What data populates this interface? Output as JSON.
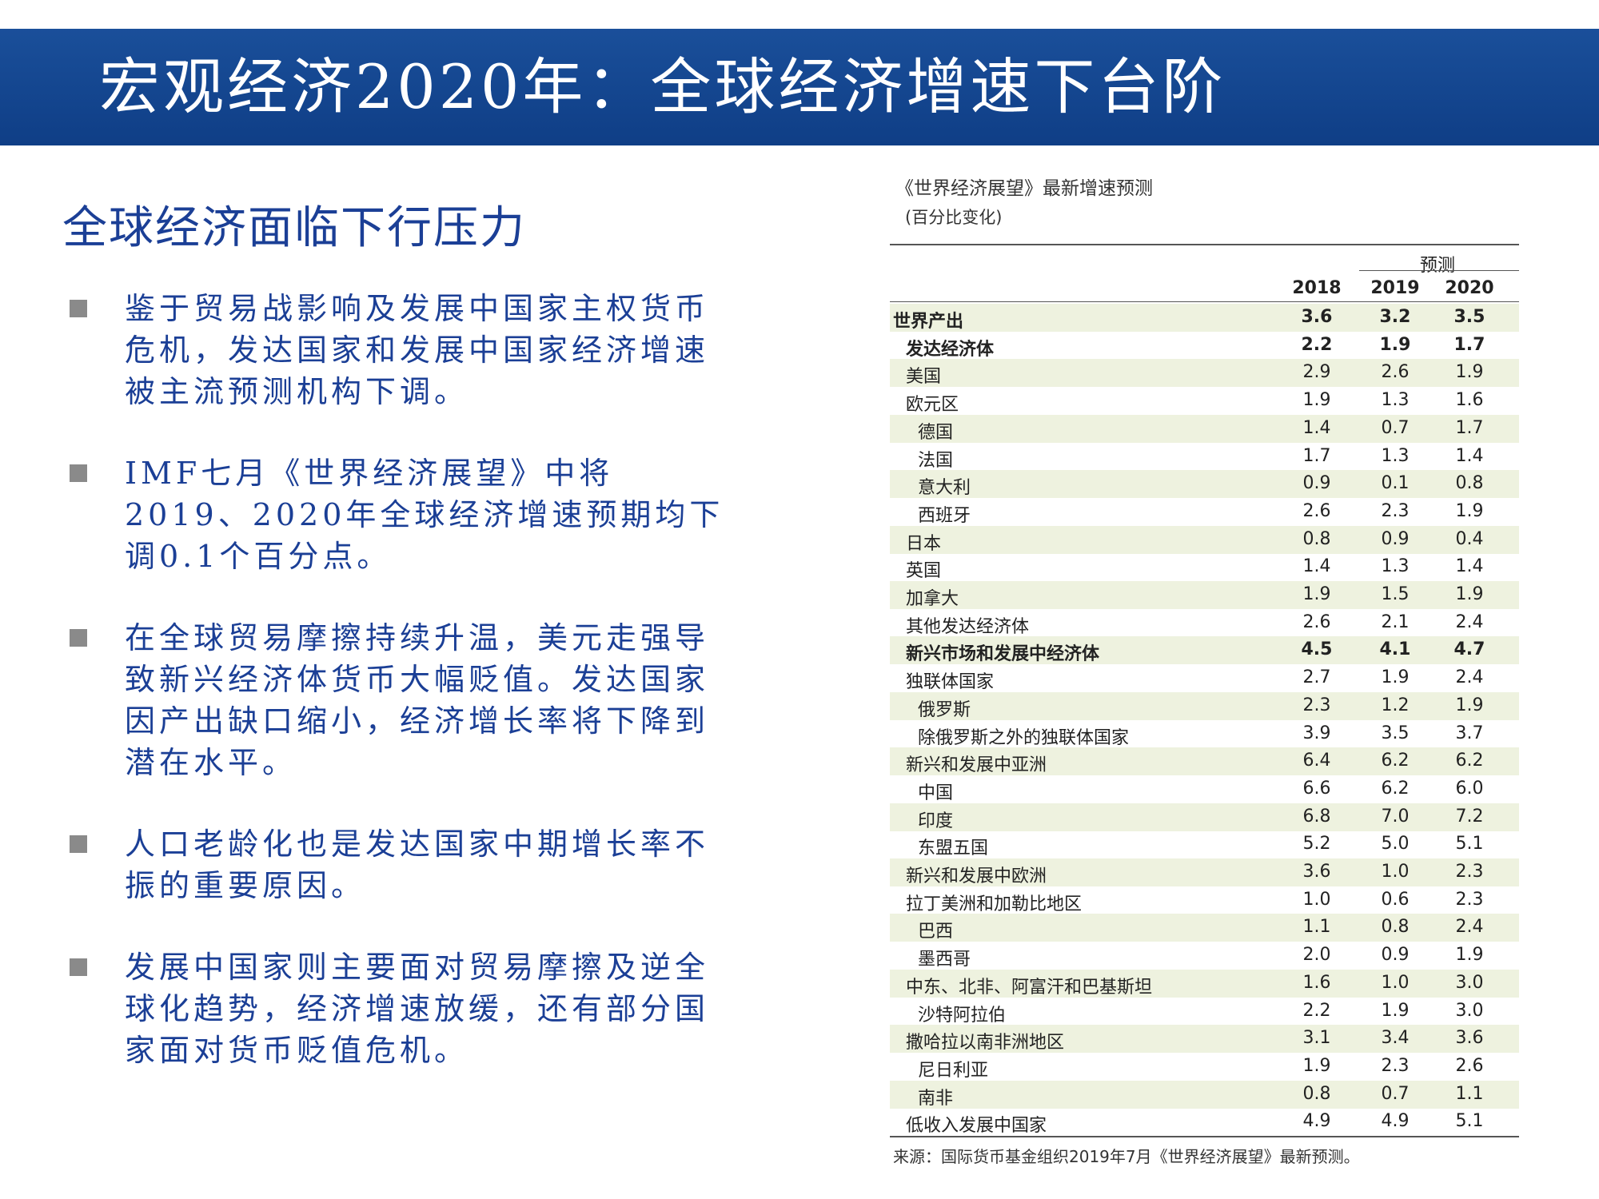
{
  "header": {
    "title": "宏观经济2020年：全球经济增速下台阶"
  },
  "left": {
    "heading": "全球经济面临下行压力",
    "bullets": [
      "鉴于贸易战影响及发展中国家主权货币危机，发达国家和发展中国家经济增速被主流预测机构下调。",
      "IMF七月《世界经济展望》中将2019、2020年全球经济增速预期均下调0.1个百分点。",
      "在全球贸易摩擦持续升温，美元走强导致新兴经济体货币大幅贬值。发达国家因产出缺口缩小，经济增长率将下降到潜在水平。",
      "人口老龄化也是发达国家中期增长率不振的重要原因。",
      "发展中国家则主要面对贸易摩擦及逆全球化趋势，经济增速放缓，还有部分国家面对货币贬值危机。"
    ]
  },
  "table": {
    "title": "《世界经济展望》最新增速预测",
    "subtitle": "(百分比变化)",
    "forecast_label": "预测",
    "columns": [
      "2018",
      "2019",
      "2020"
    ],
    "rows": [
      {
        "label": "世界产出",
        "values": [
          "3.6",
          "3.2",
          "3.5"
        ],
        "level": 0,
        "bold": true
      },
      {
        "label": "发达经济体",
        "values": [
          "2.2",
          "1.9",
          "1.7"
        ],
        "level": 1,
        "bold": true
      },
      {
        "label": "美国",
        "values": [
          "2.9",
          "2.6",
          "1.9"
        ],
        "level": 1
      },
      {
        "label": "欧元区",
        "values": [
          "1.9",
          "1.3",
          "1.6"
        ],
        "level": 1
      },
      {
        "label": "德国",
        "values": [
          "1.4",
          "0.7",
          "1.7"
        ],
        "level": 2
      },
      {
        "label": "法国",
        "values": [
          "1.7",
          "1.3",
          "1.4"
        ],
        "level": 2
      },
      {
        "label": "意大利",
        "values": [
          "0.9",
          "0.1",
          "0.8"
        ],
        "level": 2
      },
      {
        "label": "西班牙",
        "values": [
          "2.6",
          "2.3",
          "1.9"
        ],
        "level": 2
      },
      {
        "label": "日本",
        "values": [
          "0.8",
          "0.9",
          "0.4"
        ],
        "level": 1
      },
      {
        "label": "英国",
        "values": [
          "1.4",
          "1.3",
          "1.4"
        ],
        "level": 1
      },
      {
        "label": "加拿大",
        "values": [
          "1.9",
          "1.5",
          "1.9"
        ],
        "level": 1
      },
      {
        "label": "其他发达经济体",
        "values": [
          "2.6",
          "2.1",
          "2.4"
        ],
        "level": 1
      },
      {
        "label": "新兴市场和发展中经济体",
        "values": [
          "4.5",
          "4.1",
          "4.7"
        ],
        "level": 1,
        "bold": true
      },
      {
        "label": "独联体国家",
        "values": [
          "2.7",
          "1.9",
          "2.4"
        ],
        "level": 1
      },
      {
        "label": "俄罗斯",
        "values": [
          "2.3",
          "1.2",
          "1.9"
        ],
        "level": 2
      },
      {
        "label": "除俄罗斯之外的独联体国家",
        "values": [
          "3.9",
          "3.5",
          "3.7"
        ],
        "level": 2
      },
      {
        "label": "新兴和发展中亚洲",
        "values": [
          "6.4",
          "6.2",
          "6.2"
        ],
        "level": 1
      },
      {
        "label": "中国",
        "values": [
          "6.6",
          "6.2",
          "6.0"
        ],
        "level": 2
      },
      {
        "label": "印度",
        "values": [
          "6.8",
          "7.0",
          "7.2"
        ],
        "level": 2
      },
      {
        "label": "东盟五国",
        "values": [
          "5.2",
          "5.0",
          "5.1"
        ],
        "level": 2
      },
      {
        "label": "新兴和发展中欧洲",
        "values": [
          "3.6",
          "1.0",
          "2.3"
        ],
        "level": 1
      },
      {
        "label": "拉丁美洲和加勒比地区",
        "values": [
          "1.0",
          "0.6",
          "2.3"
        ],
        "level": 1
      },
      {
        "label": "巴西",
        "values": [
          "1.1",
          "0.8",
          "2.4"
        ],
        "level": 2
      },
      {
        "label": "墨西哥",
        "values": [
          "2.0",
          "0.9",
          "1.9"
        ],
        "level": 2
      },
      {
        "label": "中东、北非、阿富汗和巴基斯坦",
        "values": [
          "1.6",
          "1.0",
          "3.0"
        ],
        "level": 1
      },
      {
        "label": "沙特阿拉伯",
        "values": [
          "2.2",
          "1.9",
          "3.0"
        ],
        "level": 2
      },
      {
        "label": "撒哈拉以南非洲地区",
        "values": [
          "3.1",
          "3.4",
          "3.6"
        ],
        "level": 1
      },
      {
        "label": "尼日利亚",
        "values": [
          "1.9",
          "2.3",
          "2.6"
        ],
        "level": 2
      },
      {
        "label": "南非",
        "values": [
          "0.8",
          "0.7",
          "1.1"
        ],
        "level": 2
      },
      {
        "label": "低收入发展中国家",
        "values": [
          "4.9",
          "4.9",
          "5.1"
        ],
        "level": 1
      }
    ],
    "source": "来源：国际货币基金组织2019年7月《世界经济展望》最新预测。"
  }
}
